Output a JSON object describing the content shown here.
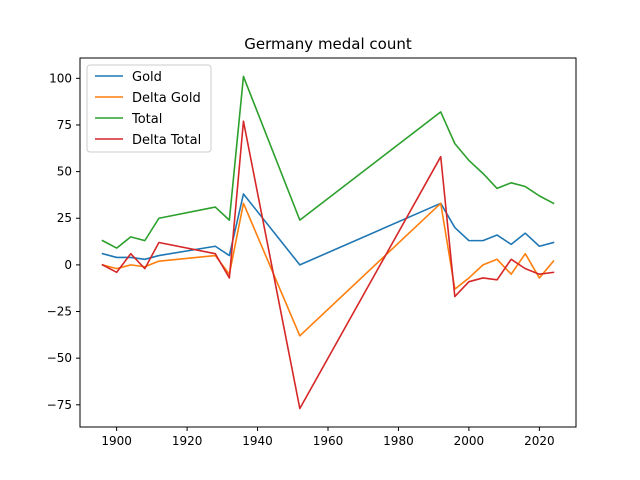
{
  "chart_data": {
    "type": "line",
    "title": "Germany medal count",
    "xlabel": "",
    "ylabel": "",
    "xlim": [
      1889.6,
      2030.4
    ],
    "ylim": [
      -86.9,
      110.9
    ],
    "xticks": [
      1900,
      1920,
      1940,
      1960,
      1980,
      2000,
      2020
    ],
    "yticks": [
      -75,
      -50,
      -25,
      0,
      25,
      50,
      75,
      100
    ],
    "grid": false,
    "legend_position": "top-left",
    "x": [
      1896,
      1900,
      1904,
      1908,
      1912,
      1928,
      1932,
      1936,
      1952,
      1992,
      1996,
      2000,
      2004,
      2008,
      2012,
      2016,
      2020,
      2024
    ],
    "series": [
      {
        "name": "Gold",
        "color": "#1f77b4",
        "values": [
          6,
          4,
          4,
          3,
          5,
          10,
          5,
          38,
          0,
          33,
          20,
          13,
          13,
          16,
          11,
          17,
          10,
          12
        ]
      },
      {
        "name": "Delta Gold",
        "color": "#ff7f0e",
        "values": [
          0,
          -2,
          0,
          -1,
          2,
          5,
          -5,
          33,
          -38,
          33,
          -13,
          -7,
          0,
          3,
          -5,
          6,
          -7,
          2
        ]
      },
      {
        "name": "Total",
        "color": "#2ca02c",
        "values": [
          13,
          9,
          15,
          13,
          25,
          31,
          24,
          101,
          24,
          82,
          65,
          56,
          49,
          41,
          44,
          42,
          37,
          33
        ]
      },
      {
        "name": "Delta Total",
        "color": "#d62728",
        "values": [
          0,
          -4,
          6,
          -2,
          12,
          6,
          -7,
          77,
          -77,
          58,
          -17,
          -9,
          -7,
          -8,
          3,
          -2,
          -5,
          -4
        ]
      }
    ]
  }
}
